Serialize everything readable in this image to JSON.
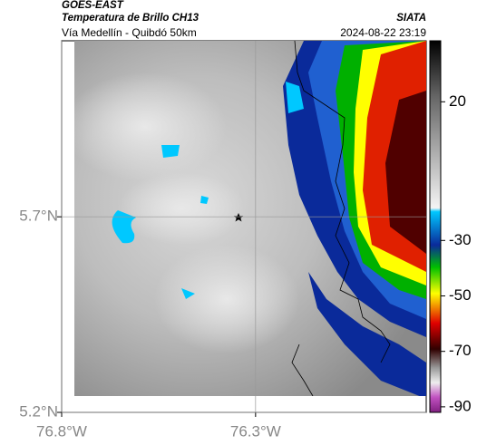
{
  "header": {
    "left_title": "GOES-EAST",
    "left_subtitle": "Temperatura de Brillo CH13",
    "left_caption": "Vía Medellín - Quibdó 50km",
    "right_title": "SIATA",
    "right_caption": "2024-08-22 23:19"
  },
  "map": {
    "xlim": [
      -76.8,
      -75.86
    ],
    "ylim": [
      5.2,
      6.15
    ],
    "xticks": [
      {
        "value": -76.8,
        "label": "76.8°W"
      },
      {
        "value": -76.3,
        "label": "76.3°W"
      }
    ],
    "yticks": [
      {
        "value": 5.7,
        "label": "5.7°N"
      },
      {
        "value": 5.2,
        "label": "5.2°N"
      }
    ],
    "grid": true
  },
  "colorbar": {
    "lim": [
      -92,
      42
    ],
    "ticks": [
      20,
      -30,
      -50,
      -70,
      -90
    ]
  }
}
